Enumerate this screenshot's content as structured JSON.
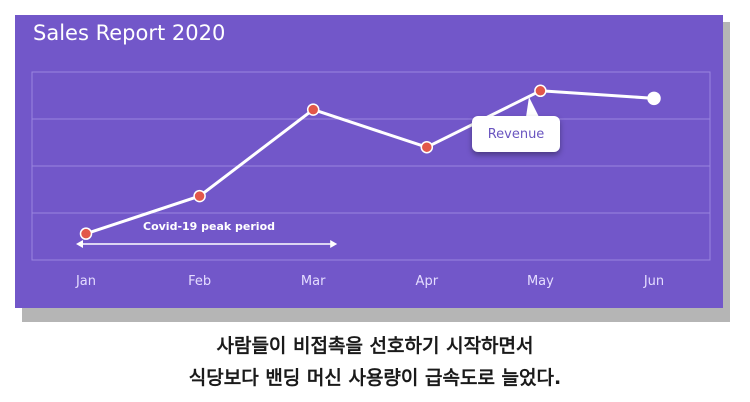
{
  "chart_data": {
    "type": "line",
    "title": "Sales Report 2020",
    "categories": [
      "Jan",
      "Feb",
      "Mar",
      "Apr",
      "May",
      "Jun"
    ],
    "series": [
      {
        "name": "Revenue",
        "values": [
          0.2,
          1.2,
          3.5,
          2.5,
          4.0,
          3.8
        ]
      }
    ],
    "ylim": [
      -0.5,
      4.5
    ],
    "grid": true,
    "annotations": {
      "callout": "Revenue",
      "period_label": "Covid-19 peak period",
      "period_range": [
        "Jan",
        "Mar"
      ]
    },
    "colors": {
      "background": "#7257c9",
      "line": "#ffffff",
      "point": "#e2574a",
      "grid": "#9a85e0"
    }
  },
  "caption": {
    "line1": "사람들이 비접촉을 선호하기 시작하면서",
    "line2": "식당보다 밴딩 머신 사용량이 급속도로 늘었다."
  }
}
